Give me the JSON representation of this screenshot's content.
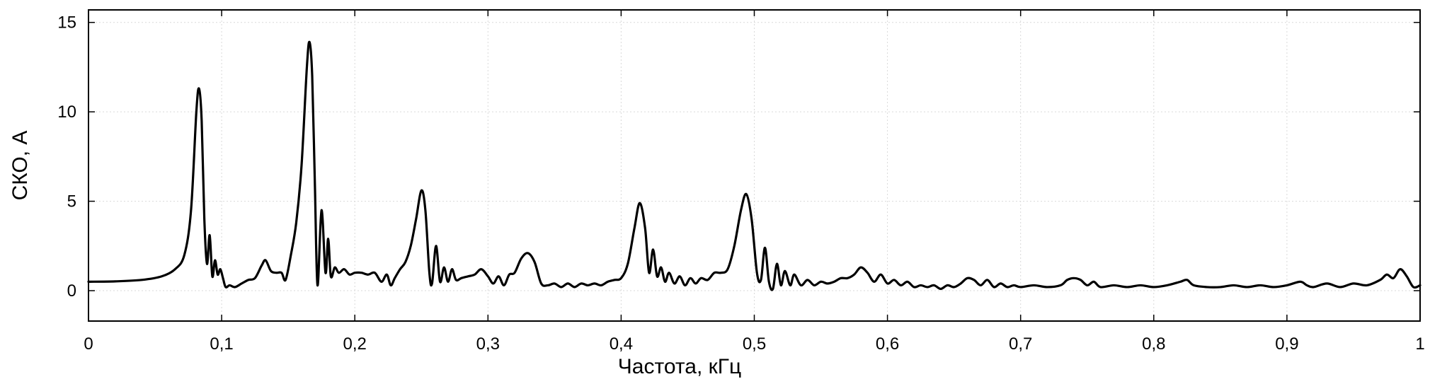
{
  "chart_data": {
    "type": "line",
    "title": "",
    "xlabel": "Частота, кГц",
    "ylabel": "СКО, А",
    "xlim": [
      0,
      1
    ],
    "ylim": [
      -1.7,
      15.7
    ],
    "grid": true,
    "decimal_separator": ",",
    "x_ticks": [
      0,
      0.1,
      0.2,
      0.3,
      0.4,
      0.5,
      0.6,
      0.7,
      0.8,
      0.9,
      1
    ],
    "y_ticks": [
      0,
      5,
      10,
      15
    ],
    "series_color": "#000000",
    "series": [
      {
        "points": [
          [
            0,
            0.5
          ],
          [
            0.02,
            0.52
          ],
          [
            0.04,
            0.6
          ],
          [
            0.055,
            0.8
          ],
          [
            0.065,
            1.2
          ],
          [
            0.072,
            2.0
          ],
          [
            0.077,
            4.5
          ],
          [
            0.081,
            10.0
          ],
          [
            0.083,
            11.3
          ],
          [
            0.085,
            9.5
          ],
          [
            0.087,
            4.0
          ],
          [
            0.089,
            1.5
          ],
          [
            0.091,
            3.1
          ],
          [
            0.093,
            0.8
          ],
          [
            0.095,
            1.7
          ],
          [
            0.097,
            0.9
          ],
          [
            0.099,
            1.2
          ],
          [
            0.101,
            0.7
          ],
          [
            0.103,
            0.2
          ],
          [
            0.106,
            0.3
          ],
          [
            0.11,
            0.2
          ],
          [
            0.115,
            0.4
          ],
          [
            0.12,
            0.6
          ],
          [
            0.125,
            0.7
          ],
          [
            0.13,
            1.4
          ],
          [
            0.133,
            1.7
          ],
          [
            0.137,
            1.1
          ],
          [
            0.141,
            1.0
          ],
          [
            0.145,
            1.0
          ],
          [
            0.148,
            0.6
          ],
          [
            0.152,
            2.0
          ],
          [
            0.156,
            3.8
          ],
          [
            0.16,
            7.0
          ],
          [
            0.164,
            12.5
          ],
          [
            0.166,
            13.9
          ],
          [
            0.168,
            12.0
          ],
          [
            0.17,
            6.0
          ],
          [
            0.172,
            0.3
          ],
          [
            0.175,
            4.5
          ],
          [
            0.178,
            1.0
          ],
          [
            0.18,
            2.9
          ],
          [
            0.182,
            0.8
          ],
          [
            0.185,
            1.3
          ],
          [
            0.188,
            1.0
          ],
          [
            0.192,
            1.2
          ],
          [
            0.196,
            0.9
          ],
          [
            0.2,
            1.0
          ],
          [
            0.205,
            1.0
          ],
          [
            0.21,
            0.9
          ],
          [
            0.215,
            1.0
          ],
          [
            0.22,
            0.5
          ],
          [
            0.224,
            0.9
          ],
          [
            0.227,
            0.3
          ],
          [
            0.23,
            0.7
          ],
          [
            0.234,
            1.2
          ],
          [
            0.238,
            1.6
          ],
          [
            0.242,
            2.5
          ],
          [
            0.246,
            4.0
          ],
          [
            0.25,
            5.6
          ],
          [
            0.253,
            4.5
          ],
          [
            0.256,
            1.0
          ],
          [
            0.258,
            0.4
          ],
          [
            0.261,
            2.5
          ],
          [
            0.264,
            0.5
          ],
          [
            0.267,
            1.3
          ],
          [
            0.27,
            0.5
          ],
          [
            0.273,
            1.2
          ],
          [
            0.276,
            0.6
          ],
          [
            0.28,
            0.7
          ],
          [
            0.285,
            0.8
          ],
          [
            0.29,
            0.9
          ],
          [
            0.295,
            1.2
          ],
          [
            0.3,
            0.8
          ],
          [
            0.304,
            0.4
          ],
          [
            0.308,
            0.8
          ],
          [
            0.312,
            0.3
          ],
          [
            0.316,
            0.9
          ],
          [
            0.32,
            1.0
          ],
          [
            0.325,
            1.8
          ],
          [
            0.33,
            2.1
          ],
          [
            0.335,
            1.6
          ],
          [
            0.34,
            0.4
          ],
          [
            0.345,
            0.3
          ],
          [
            0.35,
            0.4
          ],
          [
            0.355,
            0.2
          ],
          [
            0.36,
            0.4
          ],
          [
            0.365,
            0.2
          ],
          [
            0.37,
            0.4
          ],
          [
            0.375,
            0.3
          ],
          [
            0.38,
            0.4
          ],
          [
            0.385,
            0.3
          ],
          [
            0.39,
            0.5
          ],
          [
            0.395,
            0.6
          ],
          [
            0.4,
            0.7
          ],
          [
            0.405,
            1.5
          ],
          [
            0.41,
            3.5
          ],
          [
            0.414,
            4.9
          ],
          [
            0.418,
            3.5
          ],
          [
            0.421,
            1.0
          ],
          [
            0.424,
            2.3
          ],
          [
            0.427,
            0.8
          ],
          [
            0.43,
            1.3
          ],
          [
            0.433,
            0.5
          ],
          [
            0.436,
            1.0
          ],
          [
            0.44,
            0.4
          ],
          [
            0.444,
            0.8
          ],
          [
            0.448,
            0.3
          ],
          [
            0.452,
            0.7
          ],
          [
            0.456,
            0.4
          ],
          [
            0.46,
            0.7
          ],
          [
            0.465,
            0.6
          ],
          [
            0.47,
            1.0
          ],
          [
            0.475,
            1.0
          ],
          [
            0.48,
            1.2
          ],
          [
            0.485,
            2.5
          ],
          [
            0.49,
            4.5
          ],
          [
            0.494,
            5.4
          ],
          [
            0.498,
            4.0
          ],
          [
            0.502,
            1.0
          ],
          [
            0.505,
            0.6
          ],
          [
            0.508,
            2.4
          ],
          [
            0.511,
            0.5
          ],
          [
            0.514,
            0.1
          ],
          [
            0.517,
            1.5
          ],
          [
            0.52,
            0.3
          ],
          [
            0.523,
            1.1
          ],
          [
            0.527,
            0.3
          ],
          [
            0.53,
            0.9
          ],
          [
            0.535,
            0.3
          ],
          [
            0.54,
            0.6
          ],
          [
            0.545,
            0.3
          ],
          [
            0.55,
            0.5
          ],
          [
            0.555,
            0.4
          ],
          [
            0.56,
            0.5
          ],
          [
            0.565,
            0.7
          ],
          [
            0.57,
            0.7
          ],
          [
            0.575,
            0.9
          ],
          [
            0.58,
            1.3
          ],
          [
            0.585,
            1.0
          ],
          [
            0.59,
            0.5
          ],
          [
            0.595,
            0.9
          ],
          [
            0.6,
            0.4
          ],
          [
            0.605,
            0.6
          ],
          [
            0.61,
            0.3
          ],
          [
            0.615,
            0.5
          ],
          [
            0.62,
            0.2
          ],
          [
            0.625,
            0.3
          ],
          [
            0.63,
            0.2
          ],
          [
            0.635,
            0.3
          ],
          [
            0.64,
            0.1
          ],
          [
            0.645,
            0.3
          ],
          [
            0.65,
            0.2
          ],
          [
            0.655,
            0.4
          ],
          [
            0.66,
            0.7
          ],
          [
            0.665,
            0.6
          ],
          [
            0.67,
            0.3
          ],
          [
            0.675,
            0.6
          ],
          [
            0.68,
            0.2
          ],
          [
            0.685,
            0.4
          ],
          [
            0.69,
            0.2
          ],
          [
            0.695,
            0.3
          ],
          [
            0.7,
            0.2
          ],
          [
            0.71,
            0.3
          ],
          [
            0.72,
            0.2
          ],
          [
            0.73,
            0.3
          ],
          [
            0.735,
            0.6
          ],
          [
            0.74,
            0.7
          ],
          [
            0.745,
            0.6
          ],
          [
            0.75,
            0.3
          ],
          [
            0.755,
            0.5
          ],
          [
            0.76,
            0.2
          ],
          [
            0.77,
            0.3
          ],
          [
            0.78,
            0.2
          ],
          [
            0.79,
            0.3
          ],
          [
            0.8,
            0.2
          ],
          [
            0.81,
            0.3
          ],
          [
            0.82,
            0.5
          ],
          [
            0.825,
            0.6
          ],
          [
            0.83,
            0.3
          ],
          [
            0.84,
            0.2
          ],
          [
            0.85,
            0.2
          ],
          [
            0.86,
            0.3
          ],
          [
            0.87,
            0.2
          ],
          [
            0.88,
            0.3
          ],
          [
            0.89,
            0.2
          ],
          [
            0.9,
            0.3
          ],
          [
            0.91,
            0.5
          ],
          [
            0.915,
            0.3
          ],
          [
            0.92,
            0.2
          ],
          [
            0.93,
            0.4
          ],
          [
            0.94,
            0.2
          ],
          [
            0.95,
            0.4
          ],
          [
            0.96,
            0.3
          ],
          [
            0.97,
            0.6
          ],
          [
            0.975,
            0.9
          ],
          [
            0.98,
            0.7
          ],
          [
            0.985,
            1.2
          ],
          [
            0.99,
            0.8
          ],
          [
            0.995,
            0.2
          ],
          [
            1.0,
            0.3
          ]
        ]
      }
    ]
  }
}
